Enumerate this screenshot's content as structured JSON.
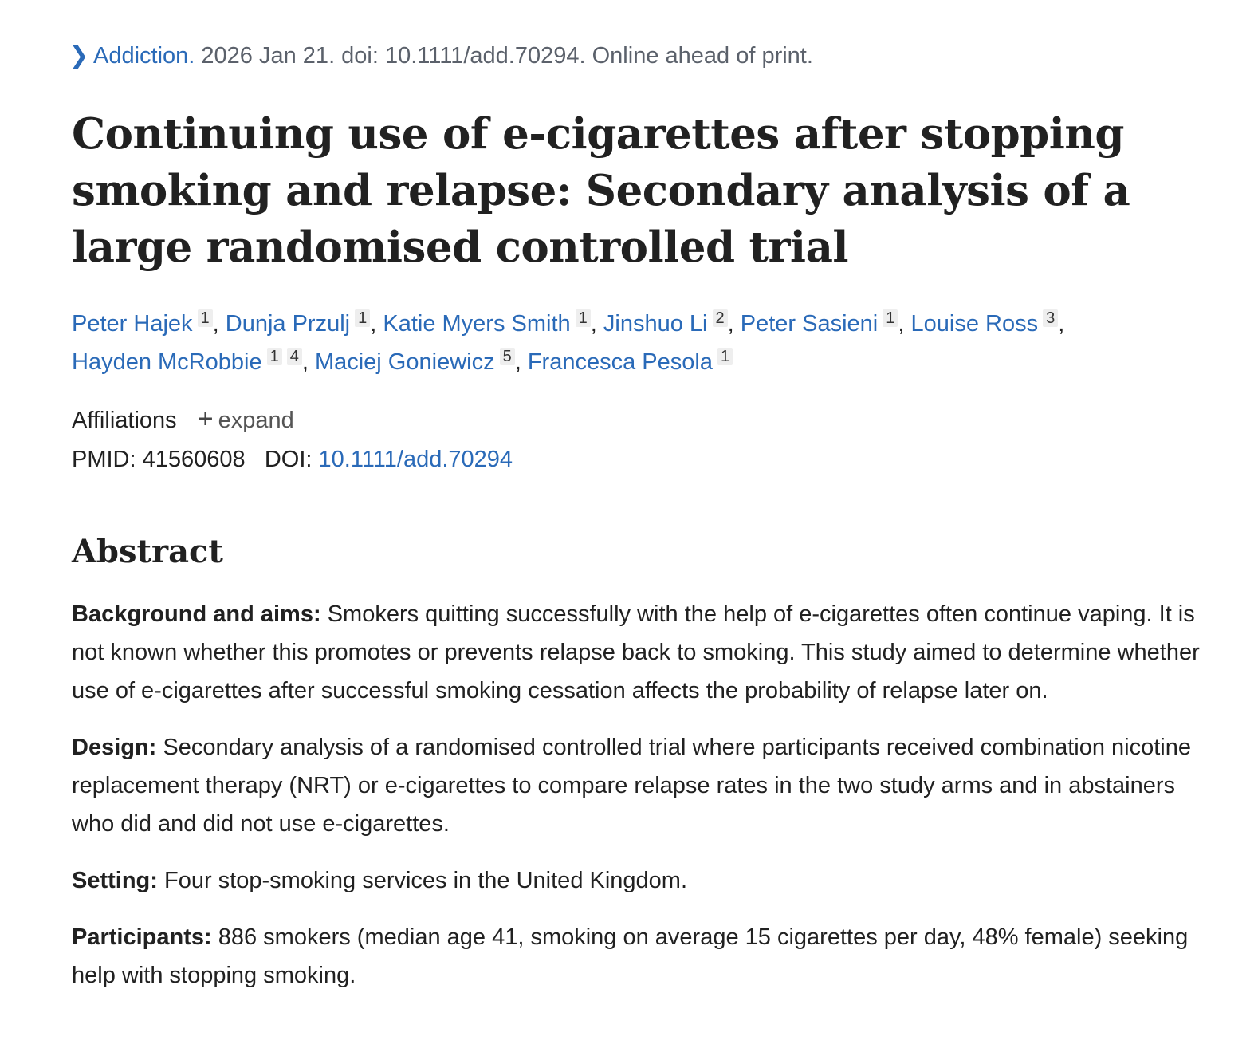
{
  "citation": {
    "journal": "Addiction.",
    "details": "2026 Jan 21. doi: 10.1111/add.70294. Online ahead of print."
  },
  "title": "Continuing use of e-cigarettes after stopping smoking and relapse: Secondary analysis of a large randomised controlled trial",
  "authors": [
    {
      "name": "Peter Hajek",
      "affs": [
        "1"
      ]
    },
    {
      "name": "Dunja Przulj",
      "affs": [
        "1"
      ]
    },
    {
      "name": "Katie Myers Smith",
      "affs": [
        "1"
      ]
    },
    {
      "name": "Jinshuo Li",
      "affs": [
        "2"
      ]
    },
    {
      "name": "Peter Sasieni",
      "affs": [
        "1"
      ]
    },
    {
      "name": "Louise Ross",
      "affs": [
        "3"
      ]
    },
    {
      "name": "Hayden McRobbie",
      "affs": [
        "1",
        "4"
      ]
    },
    {
      "name": "Maciej Goniewicz",
      "affs": [
        "5"
      ]
    },
    {
      "name": "Francesca Pesola",
      "affs": [
        "1"
      ]
    }
  ],
  "affiliations": {
    "label": "Affiliations",
    "expand_icon": "plus-icon",
    "expand_label": "expand"
  },
  "ids": {
    "pmid_label": "PMID:",
    "pmid": "41560608",
    "doi_label": "DOI:",
    "doi": "10.1111/add.70294"
  },
  "abstract": {
    "heading": "Abstract",
    "sections": [
      {
        "label": "Background and aims:",
        "text": "Smokers quitting successfully with the help of e-cigarettes often continue vaping. It is not known whether this promotes or prevents relapse back to smoking. This study aimed to determine whether use of e-cigarettes after successful smoking cessation affects the probability of relapse later on."
      },
      {
        "label": "Design:",
        "text": "Secondary analysis of a randomised controlled trial where participants received combination nicotine replacement therapy (NRT) or e-cigarettes to compare relapse rates in the two study arms and in abstainers who did and did not use e-cigarettes."
      },
      {
        "label": "Setting:",
        "text": "Four stop-smoking services in the United Kingdom."
      },
      {
        "label": "Participants:",
        "text": "886 smokers (median age 41, smoking on average 15 cigarettes per day, 48% female) seeking help with stopping smoking."
      }
    ]
  },
  "colors": {
    "link": "#2a6ab8",
    "text": "#212121",
    "muted": "#5b616b"
  }
}
